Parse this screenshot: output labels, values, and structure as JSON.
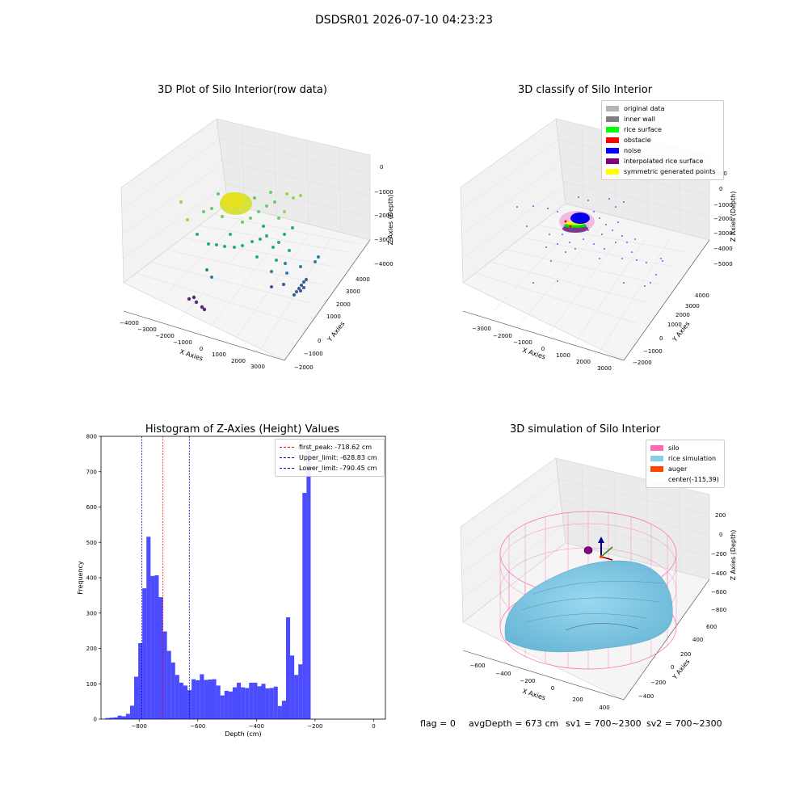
{
  "suptitle": "DSDSR01 2026-07-10 04:23:23",
  "panels": {
    "raw": {
      "title": "3D Plot of Silo Interior(row data)",
      "xlabel": "X Axies",
      "ylabel": "Y Axies",
      "zlabel": "Z Axies (Depth)",
      "xticks": [
        "−4000",
        "−3000",
        "−2000",
        "−1000",
        "0",
        "1000",
        "2000",
        "3000"
      ],
      "yticks": [
        "−2000",
        "−1000",
        "0",
        "1000",
        "2000",
        "3000",
        "4000"
      ],
      "zticks": [
        "0",
        "−1000",
        "−2000",
        "−3000",
        "−4000"
      ]
    },
    "classify": {
      "title": "3D classify of Silo Interior",
      "xlabel": "X Axies",
      "ylabel": "Y Axies",
      "zlabel": "Z Axies (Depth)",
      "xticks": [
        "−3000",
        "−2000",
        "−1000",
        "0",
        "1000",
        "2000",
        "3000"
      ],
      "yticks": [
        "−2000",
        "−1000",
        "0",
        "1000",
        "2000",
        "3000",
        "4000"
      ],
      "zticks": [
        "0",
        "−1000",
        "−2000",
        "−3000",
        "−4000",
        "−5000"
      ],
      "ztick_top": "1000",
      "legend": [
        {
          "label": "original data",
          "color": "#b4b4b4"
        },
        {
          "label": "inner wall",
          "color": "#808080"
        },
        {
          "label": "rice surface",
          "color": "#00ff00"
        },
        {
          "label": "obstacle",
          "color": "#ff0000"
        },
        {
          "label": "noise",
          "color": "#0000ff"
        },
        {
          "label": "interpolated rice surface",
          "color": "#800080"
        },
        {
          "label": "symmetric generated points",
          "color": "#ffff00"
        }
      ]
    },
    "simulation": {
      "title": "3D simulation of Silo Interior",
      "xlabel": "X Axies",
      "ylabel": "Y Axies",
      "zlabel": "Z Axies (Depth)",
      "xticks": [
        "−600",
        "−400",
        "−200",
        "0",
        "200",
        "400"
      ],
      "yticks": [
        "−400",
        "−200",
        "0",
        "200",
        "400",
        "600"
      ],
      "zticks": [
        "200",
        "0",
        "−200",
        "−400",
        "−600",
        "−800"
      ],
      "legend": [
        {
          "label": "silo",
          "color": "#ff69b4"
        },
        {
          "label": "rice simulation",
          "color": "#87ceeb"
        },
        {
          "label": "auger",
          "color": "#ff4500"
        },
        {
          "label": "center(-115,39)",
          "color": ""
        }
      ]
    }
  },
  "footer": {
    "flag": "flag = 0",
    "avg": "avgDepth = 673 cm",
    "sv1": "sv1 = 700~2300",
    "sv2": "sv2 = 700~2300"
  },
  "chart_data": [
    {
      "type": "histogram",
      "title": "Histogram of Z-Axies (Height) Values",
      "xlabel": "Depth (cm)",
      "ylabel": "Frequency",
      "xlim": [
        -930,
        40
      ],
      "ylim": [
        0,
        800
      ],
      "xticks": [
        -800,
        -600,
        -400,
        -200,
        0
      ],
      "yticks": [
        0,
        100,
        200,
        300,
        400,
        500,
        600,
        700,
        800
      ],
      "bar_color": "#0000ff",
      "bin_start": -915,
      "bin_width": 14,
      "values": [
        3,
        4,
        5,
        10,
        8,
        15,
        38,
        120,
        215,
        370,
        516,
        405,
        407,
        345,
        248,
        193,
        160,
        125,
        103,
        95,
        82,
        113,
        110,
        127,
        111,
        112,
        113,
        95,
        67,
        80,
        78,
        90,
        103,
        90,
        88,
        103,
        103,
        93,
        100,
        87,
        88,
        92,
        37,
        52,
        288,
        180,
        125,
        155,
        640,
        760
      ],
      "lines": [
        {
          "label": "first_peak: -718.62 cm",
          "x": -718.62,
          "color": "#ff0000"
        },
        {
          "label": "Upper_limit: -628.83 cm",
          "x": -628.83,
          "color": "#0000aa"
        },
        {
          "label": "Lower_limit: -790.45 cm",
          "x": -790.45,
          "color": "#0000aa"
        }
      ]
    }
  ]
}
